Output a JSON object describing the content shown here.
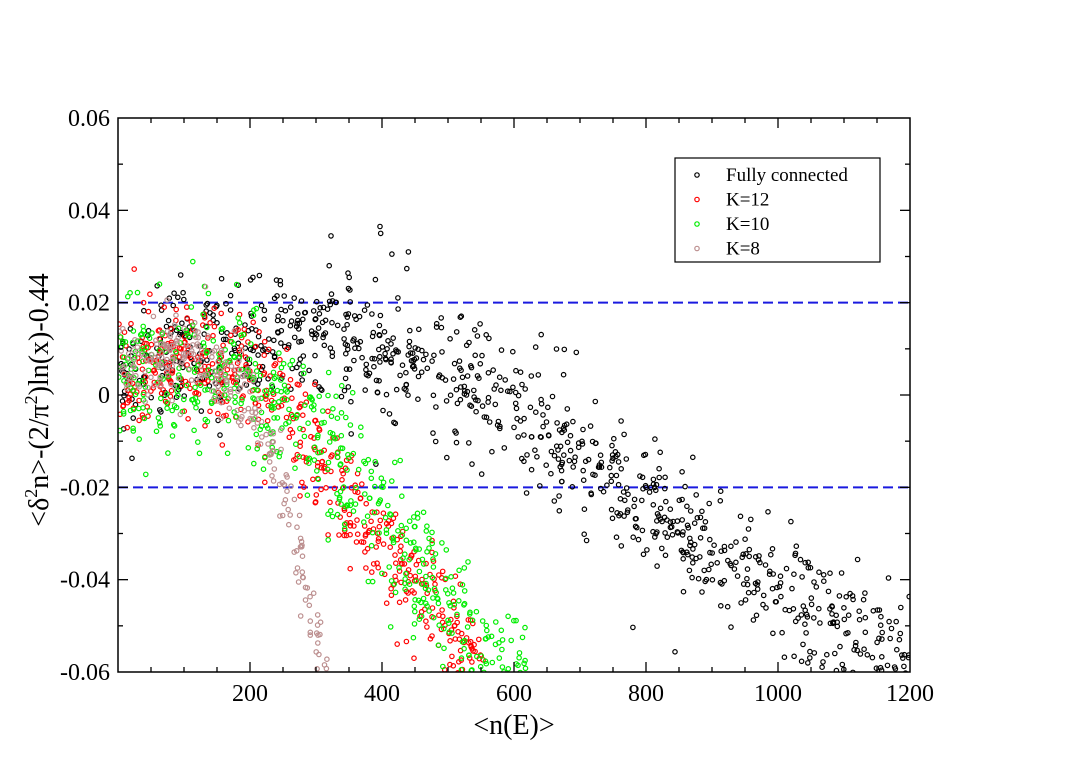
{
  "chart_data": {
    "type": "scatter",
    "title": "",
    "xlabel": "<n(E)>",
    "ylabel_parts": {
      "pre": "<δ",
      "sup1": "2",
      "mid": "n>-(2/π",
      "sup2": "2",
      "post": ")ln(x)-0.44"
    },
    "xlim": [
      0,
      1200
    ],
    "ylim": [
      -0.06,
      0.06
    ],
    "xticks": [
      200,
      400,
      600,
      800,
      1000,
      1200
    ],
    "xtick_labels": [
      "200",
      "400",
      "600",
      "800",
      "1000",
      "1200"
    ],
    "yticks": [
      -0.06,
      -0.04,
      -0.02,
      0,
      0.02,
      0.04,
      0.06
    ],
    "ytick_labels": [
      "-0.06",
      "-0.04",
      "-0.02",
      "0",
      "0.02",
      "0.04",
      "0.06"
    ],
    "grid": false,
    "legend_position": "top-right",
    "reference_lines": [
      {
        "y": 0.02,
        "style": "dashed",
        "color": "#1a1adf"
      },
      {
        "y": -0.02,
        "style": "dashed",
        "color": "#1a1adf"
      }
    ],
    "series": [
      {
        "name": "Fully connected",
        "color": "#000000",
        "points_generated": true,
        "trend": [
          [
            0,
            0.004
          ],
          [
            200,
            0.014
          ],
          [
            300,
            0.014
          ],
          [
            400,
            0.011
          ],
          [
            600,
            -0.002
          ],
          [
            800,
            -0.024
          ],
          [
            1000,
            -0.043
          ],
          [
            1200,
            -0.058
          ]
        ],
        "spread": 0.0068,
        "x_range": [
          1,
          1200
        ],
        "count": 950,
        "notable_points": [
          [
            397,
            0.0365
          ],
          [
            398,
            0.035
          ],
          [
            440,
            0.031
          ],
          [
            320,
            0.028
          ],
          [
            95,
            0.026
          ],
          [
            390,
            0.025
          ]
        ]
      },
      {
        "name": "K=12",
        "color": "#ff0000",
        "points_generated": true,
        "trend": [
          [
            0,
            0.004
          ],
          [
            100,
            0.008
          ],
          [
            200,
            0.005
          ],
          [
            250,
            -0.003
          ],
          [
            300,
            -0.013
          ],
          [
            350,
            -0.023
          ],
          [
            400,
            -0.032
          ],
          [
            450,
            -0.042
          ],
          [
            500,
            -0.05
          ],
          [
            560,
            -0.06
          ]
        ],
        "spread": 0.0065,
        "x_range": [
          1,
          560
        ],
        "count": 520
      },
      {
        "name": "K=10",
        "color": "#00ee00",
        "points_generated": true,
        "trend": [
          [
            0,
            0.004
          ],
          [
            100,
            0.005
          ],
          [
            200,
            0.004
          ],
          [
            250,
            -0.002
          ],
          [
            300,
            -0.008
          ],
          [
            350,
            -0.017
          ],
          [
            400,
            -0.027
          ],
          [
            450,
            -0.036
          ],
          [
            500,
            -0.046
          ],
          [
            560,
            -0.056
          ],
          [
            620,
            -0.06
          ]
        ],
        "spread": 0.0075,
        "x_range": [
          1,
          620
        ],
        "count": 560
      },
      {
        "name": "K=8",
        "color": "#bc8f8f",
        "points_generated": true,
        "trend": [
          [
            0,
            0.006
          ],
          [
            100,
            0.009
          ],
          [
            180,
            0.003
          ],
          [
            220,
            -0.006
          ],
          [
            250,
            -0.02
          ],
          [
            270,
            -0.032
          ],
          [
            290,
            -0.046
          ],
          [
            310,
            -0.058
          ]
        ],
        "spread": 0.0045,
        "x_range": [
          1,
          320
        ],
        "count": 260
      }
    ]
  }
}
